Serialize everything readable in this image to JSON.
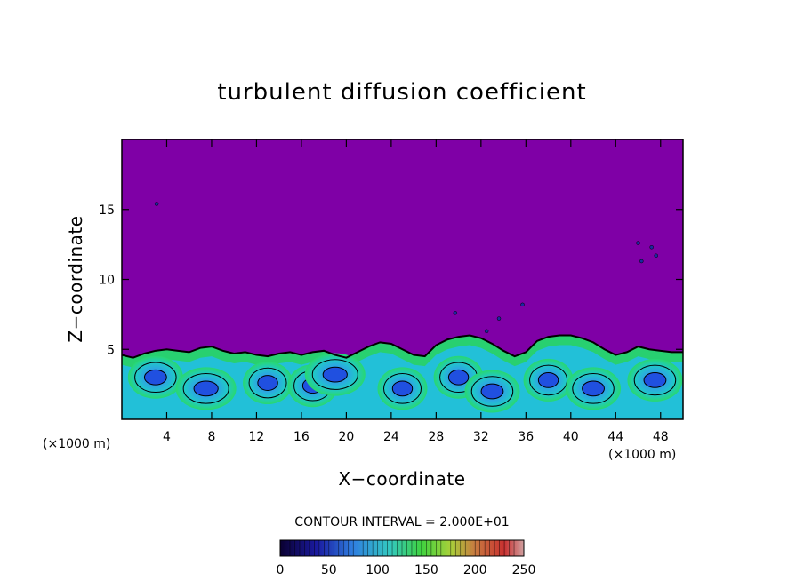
{
  "chart_data": {
    "type": "heatmap",
    "title": "turbulent diffusion coefficient",
    "xlabel": "X−coordinate",
    "ylabel": "Z−coordinate",
    "x_unit_left": "(×1000 m)",
    "x_unit_right": "(×1000 m)",
    "xlim": [
      0,
      50
    ],
    "ylim": [
      0,
      20
    ],
    "xticks": [
      4,
      8,
      12,
      16,
      20,
      24,
      28,
      32,
      36,
      40,
      44,
      48
    ],
    "yticks": [
      5,
      10,
      15
    ],
    "background_value": 0,
    "background_color": "#7f00a6",
    "boundary_layer_top": [
      [
        0,
        4.6
      ],
      [
        1,
        4.4
      ],
      [
        2,
        4.7
      ],
      [
        3,
        4.9
      ],
      [
        4,
        5.0
      ],
      [
        5,
        4.9
      ],
      [
        6,
        4.8
      ],
      [
        7,
        5.1
      ],
      [
        8,
        5.2
      ],
      [
        9,
        4.9
      ],
      [
        10,
        4.7
      ],
      [
        11,
        4.8
      ],
      [
        12,
        4.6
      ],
      [
        13,
        4.5
      ],
      [
        14,
        4.7
      ],
      [
        15,
        4.8
      ],
      [
        16,
        4.6
      ],
      [
        17,
        4.8
      ],
      [
        18,
        4.9
      ],
      [
        19,
        4.6
      ],
      [
        20,
        4.4
      ],
      [
        21,
        4.8
      ],
      [
        22,
        5.2
      ],
      [
        23,
        5.5
      ],
      [
        24,
        5.4
      ],
      [
        25,
        5.0
      ],
      [
        26,
        4.6
      ],
      [
        27,
        4.5
      ],
      [
        28,
        5.3
      ],
      [
        29,
        5.7
      ],
      [
        30,
        5.9
      ],
      [
        31,
        6.0
      ],
      [
        32,
        5.8
      ],
      [
        33,
        5.4
      ],
      [
        34,
        4.9
      ],
      [
        35,
        4.5
      ],
      [
        36,
        4.8
      ],
      [
        37,
        5.6
      ],
      [
        38,
        5.9
      ],
      [
        39,
        6.0
      ],
      [
        40,
        6.0
      ],
      [
        41,
        5.8
      ],
      [
        42,
        5.5
      ],
      [
        43,
        5.0
      ],
      [
        44,
        4.6
      ],
      [
        45,
        4.8
      ],
      [
        46,
        5.2
      ],
      [
        47,
        5.0
      ],
      [
        48,
        4.9
      ],
      [
        49,
        4.8
      ],
      [
        50,
        4.8
      ]
    ],
    "small_features": [
      [
        3.1,
        15.4
      ],
      [
        46.0,
        12.6
      ],
      [
        47.2,
        12.3
      ],
      [
        46.3,
        11.3
      ],
      [
        47.6,
        11.7
      ],
      [
        29.7,
        7.6
      ],
      [
        35.7,
        8.2
      ],
      [
        32.5,
        6.3
      ],
      [
        33.6,
        7.2
      ]
    ],
    "cells": [
      {
        "x": 3,
        "z": 3.0,
        "v": 40
      },
      {
        "x": 7.5,
        "z": 2.2,
        "v": 50
      },
      {
        "x": 13,
        "z": 2.6,
        "v": 30
      },
      {
        "x": 17,
        "z": 2.4,
        "v": 60
      },
      {
        "x": 19,
        "z": 3.2,
        "v": 80
      },
      {
        "x": 25,
        "z": 2.2,
        "v": 30
      },
      {
        "x": 30,
        "z": 3.0,
        "v": 60
      },
      {
        "x": 33,
        "z": 2.0,
        "v": 70
      },
      {
        "x": 38,
        "z": 2.8,
        "v": 30
      },
      {
        "x": 42,
        "z": 2.2,
        "v": 70
      },
      {
        "x": 47.5,
        "z": 2.8,
        "v": 40
      }
    ],
    "colorbar": {
      "label": "CONTOUR INTERVAL = 2.000E+01",
      "ticks": [
        "0",
        "50",
        "100",
        "150",
        "200",
        "250"
      ],
      "range": [
        0,
        250
      ],
      "contour_interval": 20
    }
  }
}
